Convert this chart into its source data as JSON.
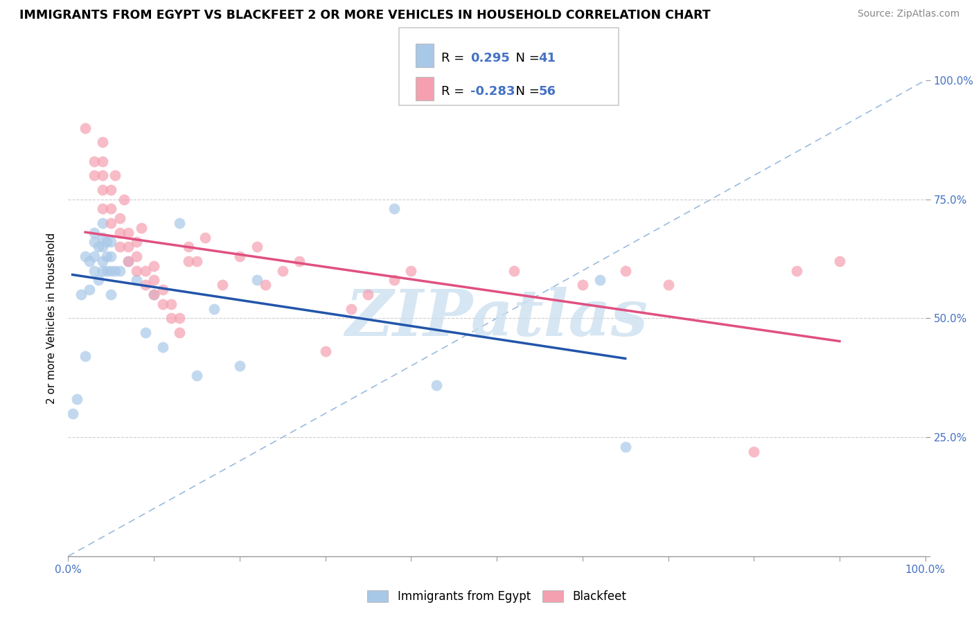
{
  "title": "IMMIGRANTS FROM EGYPT VS BLACKFEET 2 OR MORE VEHICLES IN HOUSEHOLD CORRELATION CHART",
  "source": "Source: ZipAtlas.com",
  "ylabel": "2 or more Vehicles in Household",
  "xlim": [
    0.0,
    1.0
  ],
  "ylim": [
    0.0,
    1.0
  ],
  "legend_blue_label": "Immigrants from Egypt",
  "legend_pink_label": "Blackfeet",
  "blue_R": 0.295,
  "blue_N": 41,
  "pink_R": -0.283,
  "pink_N": 56,
  "blue_color": "#a8c8e8",
  "pink_color": "#f4a0b0",
  "blue_line_color": "#2255aa",
  "pink_line_color": "#e05080",
  "dashed_line_color": "#99bbdd",
  "watermark_color": "#cce0f0",
  "blue_scatter_x": [
    0.005,
    0.01,
    0.015,
    0.02,
    0.02,
    0.025,
    0.025,
    0.03,
    0.03,
    0.03,
    0.03,
    0.035,
    0.035,
    0.04,
    0.04,
    0.04,
    0.04,
    0.04,
    0.045,
    0.045,
    0.045,
    0.05,
    0.05,
    0.05,
    0.05,
    0.055,
    0.06,
    0.07,
    0.08,
    0.09,
    0.1,
    0.11,
    0.13,
    0.15,
    0.17,
    0.2,
    0.22,
    0.38,
    0.43,
    0.62,
    0.65
  ],
  "blue_scatter_y": [
    0.3,
    0.33,
    0.55,
    0.42,
    0.63,
    0.56,
    0.62,
    0.6,
    0.63,
    0.66,
    0.68,
    0.58,
    0.65,
    0.6,
    0.62,
    0.65,
    0.67,
    0.7,
    0.6,
    0.63,
    0.66,
    0.55,
    0.6,
    0.63,
    0.66,
    0.6,
    0.6,
    0.62,
    0.58,
    0.47,
    0.55,
    0.44,
    0.7,
    0.38,
    0.52,
    0.4,
    0.58,
    0.73,
    0.36,
    0.58,
    0.23
  ],
  "pink_scatter_x": [
    0.02,
    0.03,
    0.03,
    0.04,
    0.04,
    0.04,
    0.04,
    0.04,
    0.05,
    0.05,
    0.05,
    0.055,
    0.06,
    0.06,
    0.06,
    0.065,
    0.07,
    0.07,
    0.07,
    0.08,
    0.08,
    0.08,
    0.085,
    0.09,
    0.09,
    0.1,
    0.1,
    0.1,
    0.11,
    0.11,
    0.12,
    0.12,
    0.13,
    0.13,
    0.14,
    0.14,
    0.15,
    0.16,
    0.18,
    0.2,
    0.22,
    0.23,
    0.25,
    0.27,
    0.3,
    0.33,
    0.35,
    0.38,
    0.4,
    0.52,
    0.6,
    0.65,
    0.7,
    0.8,
    0.85,
    0.9
  ],
  "pink_scatter_y": [
    0.9,
    0.8,
    0.83,
    0.73,
    0.77,
    0.8,
    0.83,
    0.87,
    0.7,
    0.73,
    0.77,
    0.8,
    0.65,
    0.68,
    0.71,
    0.75,
    0.62,
    0.65,
    0.68,
    0.6,
    0.63,
    0.66,
    0.69,
    0.57,
    0.6,
    0.55,
    0.58,
    0.61,
    0.53,
    0.56,
    0.5,
    0.53,
    0.47,
    0.5,
    0.62,
    0.65,
    0.62,
    0.67,
    0.57,
    0.63,
    0.65,
    0.57,
    0.6,
    0.62,
    0.43,
    0.52,
    0.55,
    0.58,
    0.6,
    0.6,
    0.57,
    0.6,
    0.57,
    0.22,
    0.6,
    0.62
  ]
}
